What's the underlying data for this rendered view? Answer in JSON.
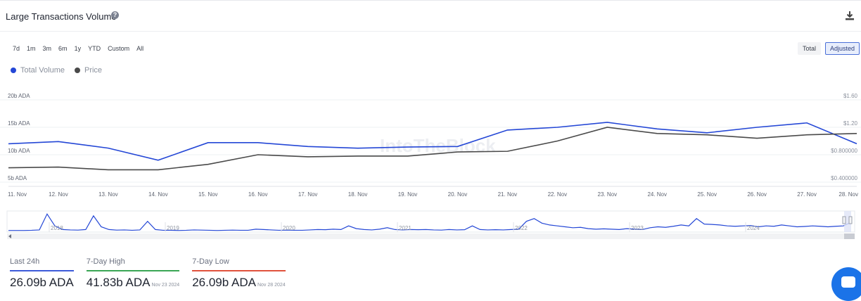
{
  "header": {
    "title": "Large Transactions Volume",
    "help_icon": "help-circle-icon",
    "download_icon": "download-icon"
  },
  "range_buttons": [
    "7d",
    "1m",
    "3m",
    "6m",
    "1y",
    "YTD",
    "Custom",
    "All"
  ],
  "mode_buttons": [
    {
      "label": "Total",
      "active": false
    },
    {
      "label": "Adjusted",
      "active": true
    }
  ],
  "legend": [
    {
      "label": "Total Volume",
      "color": "#2447d6"
    },
    {
      "label": "Price",
      "color": "#4a4a4a"
    }
  ],
  "watermark": "IntoTheBlock",
  "chart_data": {
    "type": "line",
    "x": [
      "11. Nov",
      "12. Nov",
      "13. Nov",
      "14. Nov",
      "15. Nov",
      "16. Nov",
      "17. Nov",
      "18. Nov",
      "19. Nov",
      "20. Nov",
      "21. Nov",
      "22. Nov",
      "23. Nov",
      "24. Nov",
      "25. Nov",
      "26. Nov",
      "27. Nov",
      "28. Nov"
    ],
    "left_axis": {
      "ticks": [
        "5b ADA",
        "10b ADA",
        "15b ADA",
        "20b ADA"
      ],
      "tick_values": [
        5,
        10,
        15,
        20
      ],
      "range": [
        5,
        20
      ]
    },
    "right_axis": {
      "ticks": [
        "$0.400000",
        "$0.800000",
        "$1.20",
        "$1.60"
      ],
      "tick_values": [
        0.4,
        0.8,
        1.2,
        1.6
      ],
      "range": [
        0.4,
        1.6
      ]
    },
    "series": [
      {
        "name": "Total Volume",
        "axis": "left",
        "color": "#2447d6",
        "values": [
          12.0,
          12.4,
          11.2,
          9.0,
          12.2,
          12.2,
          11.5,
          11.2,
          11.4,
          11.5,
          14.5,
          15.0,
          15.9,
          14.7,
          14.0,
          15.0,
          15.8,
          12.0
        ]
      },
      {
        "name": "Price",
        "axis": "right",
        "color": "#4a4a4a",
        "values": [
          0.61,
          0.62,
          0.58,
          0.58,
          0.66,
          0.8,
          0.77,
          0.78,
          0.78,
          0.84,
          0.85,
          1.0,
          1.2,
          1.11,
          1.09,
          1.04,
          1.09,
          1.11
        ]
      }
    ],
    "grid": true
  },
  "navigator": {
    "years": [
      "2018",
      "2019",
      "2020",
      "2021",
      "2022",
      "2023",
      "2024"
    ],
    "line_color": "#2447d6",
    "values": [
      0.05,
      0.05,
      0.05,
      0.06,
      0.08,
      0.95,
      0.3,
      0.1,
      0.08,
      0.07,
      0.1,
      0.85,
      0.25,
      0.1,
      0.07,
      0.08,
      0.06,
      0.08,
      0.55,
      0.1,
      0.06,
      0.06,
      0.05,
      0.06,
      0.08,
      0.07,
      0.06,
      0.05,
      0.06,
      0.07,
      0.06,
      0.06,
      0.12,
      0.1,
      0.08,
      0.06,
      0.07,
      0.06,
      0.06,
      0.08,
      0.1,
      0.09,
      0.12,
      0.1,
      0.3,
      0.15,
      0.1,
      0.08,
      0.12,
      0.2,
      0.1,
      0.08,
      0.1,
      0.09,
      0.1,
      0.08,
      0.07,
      0.1,
      0.08,
      0.09,
      0.3,
      0.1,
      0.08,
      0.09,
      0.08,
      0.1,
      0.12,
      0.55,
      0.7,
      0.45,
      0.35,
      0.3,
      0.25,
      0.2,
      0.22,
      0.15,
      0.12,
      0.14,
      0.12,
      0.1,
      0.15,
      0.12,
      0.1,
      0.2,
      0.25,
      0.22,
      0.28,
      0.35,
      0.3,
      0.7,
      0.4,
      0.38,
      0.35,
      0.3,
      0.28,
      0.3,
      0.32,
      0.25,
      0.3,
      0.28,
      0.35,
      0.3,
      0.25,
      0.27,
      0.3,
      0.28,
      0.25,
      0.28,
      0.3,
      0.5
    ]
  },
  "stats": [
    {
      "label": "Last 24h",
      "value": "26.09b ADA",
      "date": "",
      "color": "#3d5bd9"
    },
    {
      "label": "7-Day High",
      "value": "41.83b ADA",
      "date": "Nov 23 2024",
      "color": "#3aa655"
    },
    {
      "label": "7-Day Low",
      "value": "26.09b ADA",
      "date": "Nov 28 2024",
      "color": "#e0523c"
    }
  ],
  "chat_icon": "chat-bubble-icon"
}
